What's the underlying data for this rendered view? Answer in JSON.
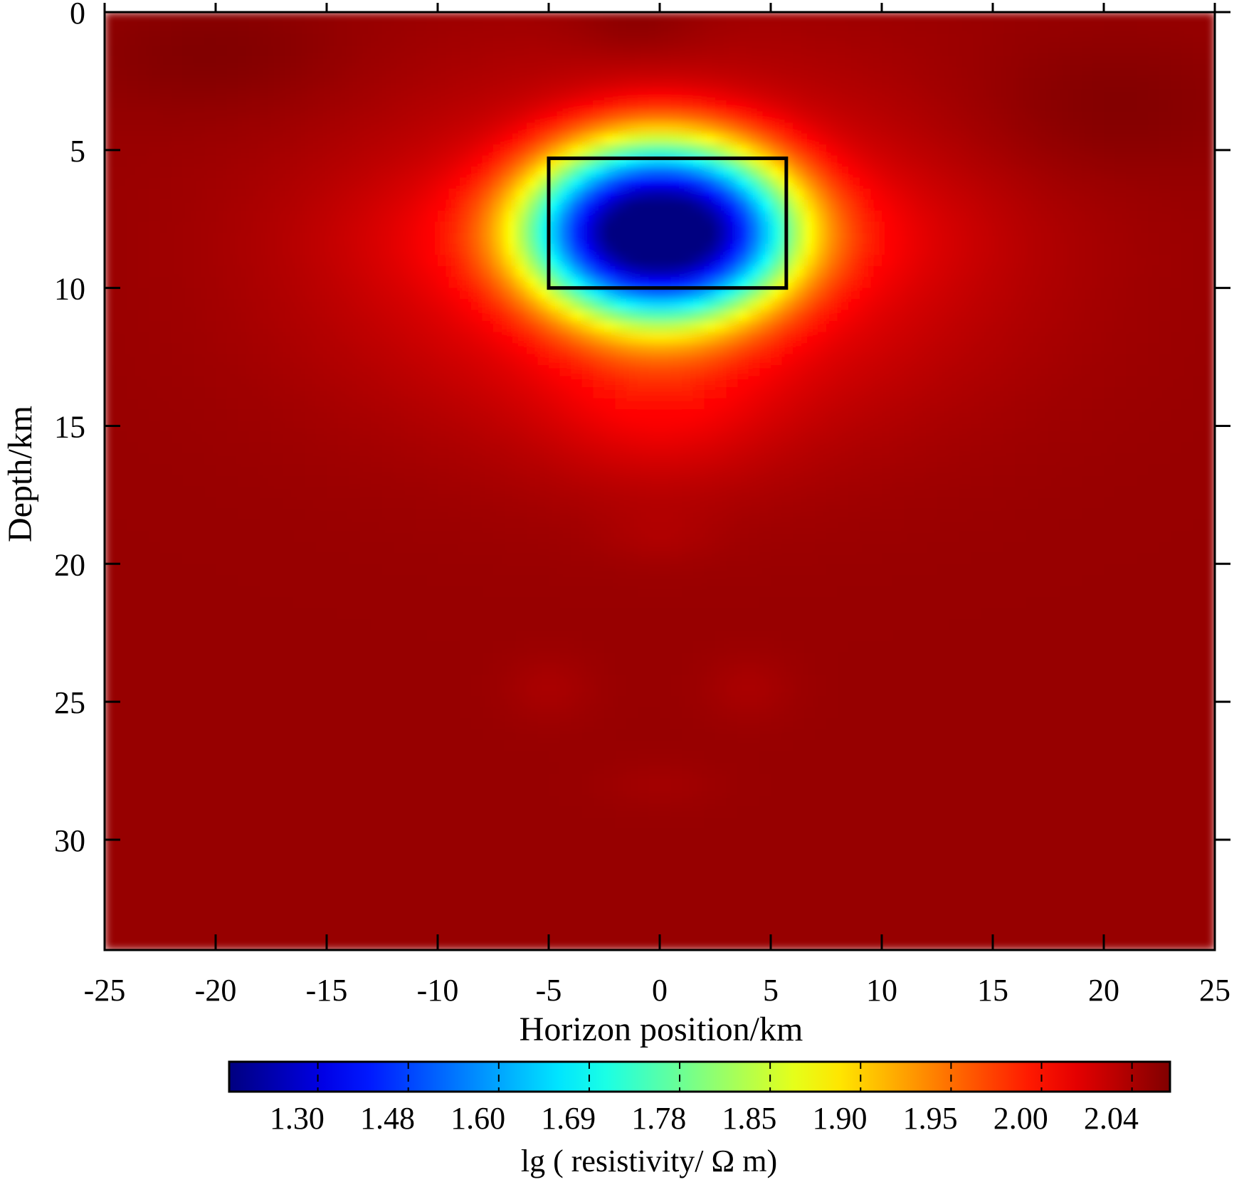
{
  "chart_data": {
    "type": "heatmap",
    "title": "",
    "xlabel": "Horizon position/km",
    "ylabel": "Depth/km",
    "xlim": [
      -25,
      25
    ],
    "ylim": [
      0,
      34
    ],
    "y_inverted": true,
    "x_ticks": [
      -25,
      -20,
      -15,
      -10,
      -5,
      0,
      5,
      10,
      15,
      20,
      25
    ],
    "x_tick_labels": [
      "-25",
      "-20",
      "-15",
      "-10",
      "-5",
      "0",
      "5",
      "10",
      "15",
      "20",
      "25"
    ],
    "y_ticks": [
      0,
      5,
      10,
      15,
      20,
      25,
      30
    ],
    "y_tick_labels": [
      "0",
      "5",
      "10",
      "15",
      "20",
      "25",
      "30"
    ],
    "colorbar": {
      "label": "lg ( resistivity/ Ω m)",
      "tick_labels": [
        "1.30",
        "1.48",
        "1.60",
        "1.69",
        "1.78",
        "1.85",
        "1.90",
        "1.95",
        "2.00",
        "2.04"
      ],
      "colormap": "jet",
      "range": [
        1.2,
        2.06
      ],
      "placement": "bottom"
    },
    "background_value": 2.04,
    "anomalies": [
      {
        "type": "low-resistivity body",
        "center_x": 0,
        "center_y": 7.9,
        "min_value": 1.2,
        "half_width_x": 6.2,
        "half_width_y": 3.5
      },
      {
        "type": "surface high",
        "center_x": -20,
        "center_y": 1.5,
        "value": 2.06
      },
      {
        "type": "surface high",
        "center_x": 20,
        "center_y": 3.5,
        "value": 2.06
      },
      {
        "type": "surface high",
        "center_x": -1,
        "center_y": 0.5,
        "value": 2.06
      }
    ],
    "annotation_box": {
      "x": [
        -5,
        5.7
      ],
      "y": [
        5.3,
        10
      ]
    },
    "grid": false,
    "legend": "none"
  }
}
